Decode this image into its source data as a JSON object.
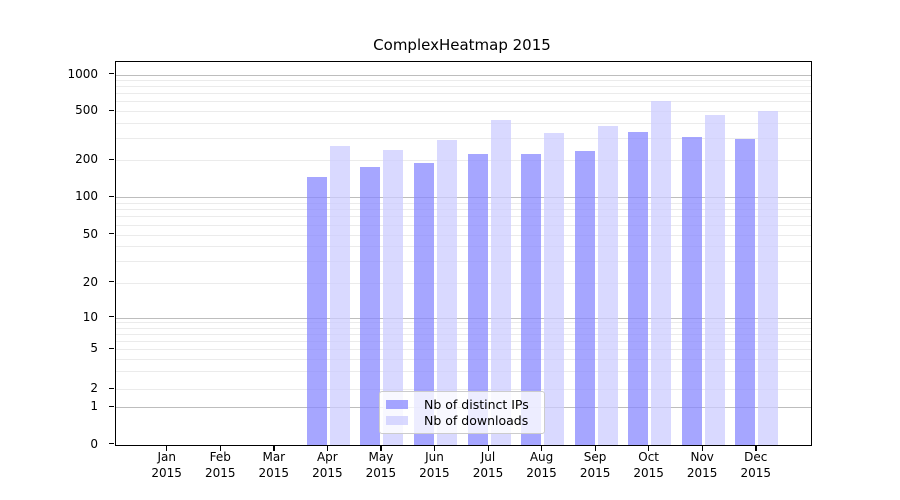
{
  "figure": {
    "title": "ComplexHeatmap 2015"
  },
  "y_axis": {
    "tick_labels": [
      "0",
      "1",
      "2",
      "5",
      "10",
      "20",
      "50",
      "100",
      "200",
      "500",
      "1000"
    ]
  },
  "x_axis": {
    "year_label": "2015"
  },
  "chart_data": {
    "type": "bar",
    "title": "ComplexHeatmap 2015",
    "categories": [
      "Jan 2015",
      "Feb 2015",
      "Mar 2015",
      "Apr 2015",
      "May 2015",
      "Jun 2015",
      "Jul 2015",
      "Aug 2015",
      "Sep 2015",
      "Oct 2015",
      "Nov 2015",
      "Dec 2015"
    ],
    "series": [
      {
        "name": "Nb of distinct IPs",
        "color": "#8888ff",
        "values": [
          0,
          0,
          0,
          145,
          176,
          190,
          222,
          222,
          237,
          338,
          310,
          298
        ]
      },
      {
        "name": "Nb of downloads",
        "color": "#ccccff",
        "values": [
          0,
          0,
          0,
          261,
          242,
          290,
          422,
          334,
          378,
          600,
          467,
          500
        ]
      }
    ],
    "xlabel": "",
    "ylabel": "",
    "yscale": "log-like with 0 baseline",
    "yticks": [
      0,
      1,
      2,
      5,
      10,
      20,
      50,
      100,
      200,
      500,
      1000
    ],
    "minor_gridline_values": [
      2,
      3,
      4,
      5,
      6,
      7,
      8,
      9,
      20,
      30,
      40,
      50,
      60,
      70,
      80,
      90,
      200,
      300,
      400,
      500,
      600,
      700,
      800,
      900
    ],
    "major_gridline_values": [
      1,
      10,
      100,
      1000
    ],
    "ylim": [
      0,
      1200
    ],
    "grid": "both",
    "legend_position": "lower center",
    "colors": {
      "grid_major": "#bdbdbd",
      "grid_minor": "#ebebeb",
      "spine": "#000000"
    }
  }
}
